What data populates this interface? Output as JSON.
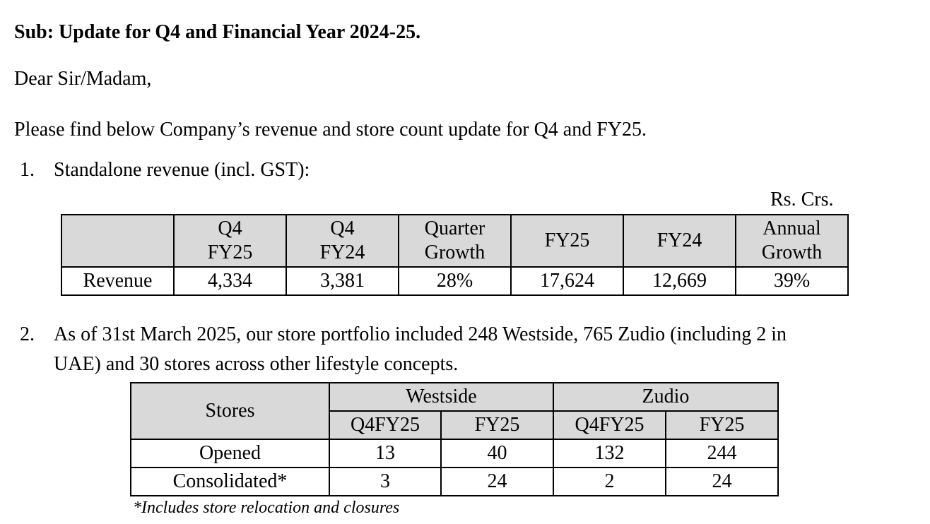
{
  "subject": "Sub: Update for Q4 and Financial Year 2024-25.",
  "salutation": "Dear Sir/Madam,",
  "intro": "Please find below Company’s revenue and store count update for Q4 and FY25.",
  "item1": {
    "number": "1.",
    "text": "Standalone revenue (incl. GST):"
  },
  "unit": "Rs. Crs.",
  "revenue_table": {
    "headers": [
      {
        "line1": "",
        "line2": ""
      },
      {
        "line1": "Q4",
        "line2": "FY25"
      },
      {
        "line1": "Q4",
        "line2": "FY24"
      },
      {
        "line1": "Quarter",
        "line2": "Growth"
      },
      {
        "line1": "FY25",
        "line2": ""
      },
      {
        "line1": "FY24",
        "line2": ""
      },
      {
        "line1": "Annual",
        "line2": "Growth"
      }
    ],
    "row": [
      "Revenue",
      "4,334",
      "3,381",
      "28%",
      "17,624",
      "12,669",
      "39%"
    ]
  },
  "item2": {
    "number": "2.",
    "line1": "As of 31st March 2025, our store portfolio included 248 Westside, 765 Zudio (including 2 in",
    "line2": "UAE) and 30 stores across other lifestyle concepts."
  },
  "store_table": {
    "corner": "Stores",
    "groups": [
      "Westside",
      "Zudio"
    ],
    "subheaders": [
      "Q4FY25",
      "FY25",
      "Q4FY25",
      "FY25"
    ],
    "rows": [
      {
        "label": "Opened",
        "values": [
          "13",
          "40",
          "132",
          "244"
        ]
      },
      {
        "label": "Consolidated*",
        "values": [
          "3",
          "24",
          "2",
          "24"
        ]
      }
    ]
  },
  "footnote": "*Includes store relocation and closures"
}
